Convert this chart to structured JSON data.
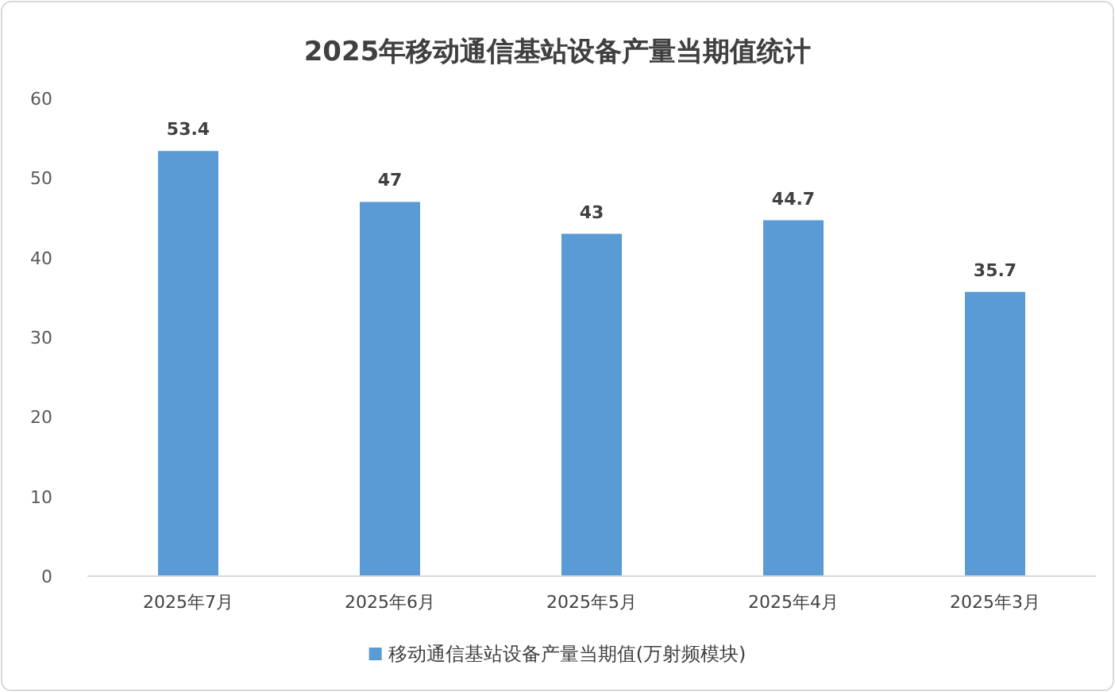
{
  "chart_data": {
    "type": "bar",
    "title": "2025年移动通信基站设备产量当期值统计",
    "categories": [
      "2025年7月",
      "2025年6月",
      "2025年5月",
      "2025年4月",
      "2025年3月"
    ],
    "series": [
      {
        "name": "移动通信基站设备产量当期值(万射频模块)",
        "color": "#5b9bd5",
        "values": [
          53.4,
          47,
          43,
          44.7,
          35.7
        ]
      }
    ],
    "ylim": [
      0,
      60
    ],
    "yticks": [
      0,
      10,
      20,
      30,
      40,
      50,
      60
    ],
    "data_labels": true,
    "legend": "bottom"
  }
}
